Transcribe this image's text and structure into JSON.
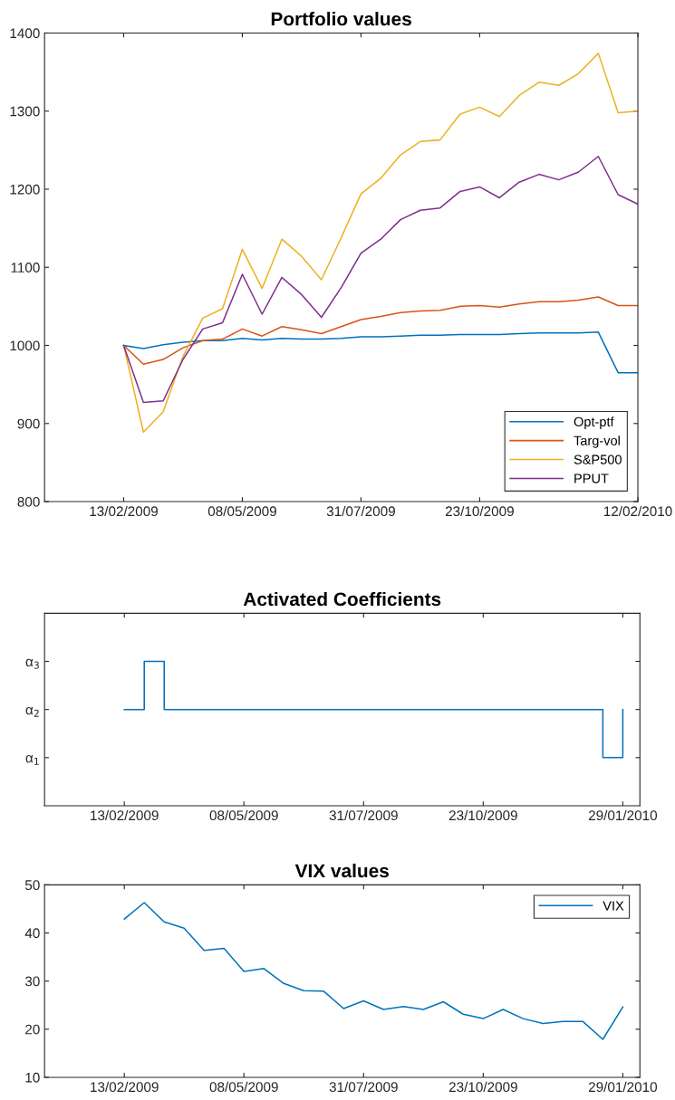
{
  "chart_data": [
    {
      "type": "line",
      "title": "Portfolio values",
      "x": [
        "2009-02-13",
        "2009-02-27",
        "2009-03-13",
        "2009-03-27",
        "2009-04-10",
        "2009-04-24",
        "2009-05-08",
        "2009-05-22",
        "2009-06-05",
        "2009-06-19",
        "2009-07-03",
        "2009-07-17",
        "2009-07-31",
        "2009-08-14",
        "2009-08-28",
        "2009-09-11",
        "2009-09-25",
        "2009-10-09",
        "2009-10-23",
        "2009-11-06",
        "2009-11-20",
        "2009-12-04",
        "2009-12-18",
        "2010-01-01",
        "2010-01-15",
        "2010-01-29",
        "2010-02-12"
      ],
      "series": [
        {
          "name": "Opt-ptf",
          "color": "#0072bd",
          "values": [
            1000,
            996,
            1001,
            1004,
            1006,
            1006,
            1009,
            1007,
            1009,
            1008,
            1008,
            1009,
            1011,
            1011,
            1012,
            1013,
            1013,
            1014,
            1014,
            1014,
            1015,
            1016,
            1016,
            1016,
            1017,
            965,
            965
          ]
        },
        {
          "name": "Targ-vol",
          "color": "#d95319",
          "values": [
            1000,
            976,
            982,
            997,
            1006,
            1008,
            1021,
            1012,
            1024,
            1020,
            1015,
            1024,
            1033,
            1037,
            1042,
            1044,
            1045,
            1050,
            1051,
            1049,
            1053,
            1056,
            1056,
            1058,
            1062,
            1051,
            1051
          ]
        },
        {
          "name": "S&P500",
          "color": "#edb120",
          "values": [
            1000,
            889,
            915,
            986,
            1035,
            1047,
            1123,
            1073,
            1136,
            1114,
            1084,
            1138,
            1194,
            1214,
            1244,
            1261,
            1263,
            1296,
            1305,
            1293,
            1320,
            1337,
            1333,
            1348,
            1374,
            1298,
            1300
          ]
        },
        {
          "name": "PPUT",
          "color": "#7e2f8e",
          "values": [
            1000,
            927,
            929,
            982,
            1021,
            1029,
            1091,
            1040,
            1087,
            1065,
            1036,
            1074,
            1118,
            1136,
            1161,
            1173,
            1176,
            1197,
            1203,
            1189,
            1209,
            1219,
            1212,
            1222,
            1242,
            1193,
            1181
          ]
        }
      ],
      "xlim": [
        "2008-12-19",
        "2010-02-12"
      ],
      "xticks": [
        {
          "value": "2009-02-13",
          "label": "13/02/2009"
        },
        {
          "value": "2009-05-08",
          "label": "08/05/2009"
        },
        {
          "value": "2009-07-31",
          "label": "31/07/2009"
        },
        {
          "value": "2009-10-23",
          "label": "23/10/2009"
        },
        {
          "value": "2010-02-12",
          "label": "12/02/2010"
        }
      ],
      "ylim": [
        800,
        1400
      ],
      "yticks": [
        800,
        900,
        1000,
        1100,
        1200,
        1300,
        1400
      ],
      "legend": "bottom right",
      "grid": false
    },
    {
      "type": "step",
      "title": "Activated Coefficients",
      "x": [
        "2009-02-13",
        "2009-02-27",
        "2009-03-13",
        "2009-03-27",
        "2009-04-10",
        "2009-04-24",
        "2009-05-08",
        "2009-05-22",
        "2009-06-05",
        "2009-06-19",
        "2009-07-03",
        "2009-07-17",
        "2009-07-31",
        "2009-08-14",
        "2009-08-28",
        "2009-09-11",
        "2009-09-25",
        "2009-10-09",
        "2009-10-23",
        "2009-11-06",
        "2009-11-20",
        "2009-12-04",
        "2009-12-18",
        "2010-01-01",
        "2010-01-15",
        "2010-01-29"
      ],
      "series": [
        {
          "color": "#0072bd",
          "values": [
            2,
            3,
            2,
            2,
            2,
            2,
            2,
            2,
            2,
            2,
            2,
            2,
            2,
            2,
            2,
            2,
            2,
            2,
            2,
            2,
            2,
            2,
            2,
            2,
            1,
            2
          ]
        }
      ],
      "xlim": [
        "2008-12-19",
        "2010-02-10"
      ],
      "xticks": [
        {
          "value": "2009-02-13",
          "label": "13/02/2009"
        },
        {
          "value": "2009-05-08",
          "label": "08/05/2009"
        },
        {
          "value": "2009-07-31",
          "label": "31/07/2009"
        },
        {
          "value": "2009-10-23",
          "label": "23/10/2009"
        },
        {
          "value": "2010-01-29",
          "label": "29/01/2010"
        }
      ],
      "ylim": [
        0,
        4
      ],
      "yticks": [
        {
          "value": 1,
          "label": "α$_{1}$"
        },
        {
          "value": 2,
          "label": "α$_{2}$"
        },
        {
          "value": 3,
          "label": "α$_{3}$"
        }
      ],
      "grid": false
    },
    {
      "type": "line",
      "title": "VIX values",
      "x": [
        "2009-02-13",
        "2009-02-27",
        "2009-03-13",
        "2009-03-27",
        "2009-04-10",
        "2009-04-24",
        "2009-05-08",
        "2009-05-22",
        "2009-06-05",
        "2009-06-19",
        "2009-07-03",
        "2009-07-17",
        "2009-07-31",
        "2009-08-14",
        "2009-08-28",
        "2009-09-11",
        "2009-09-25",
        "2009-10-09",
        "2009-10-23",
        "2009-11-06",
        "2009-11-20",
        "2009-12-04",
        "2009-12-18",
        "2010-01-01",
        "2010-01-15",
        "2010-01-29"
      ],
      "series": [
        {
          "name": "VIX",
          "color": "#0072bd",
          "values": [
            42.9,
            46.3,
            42.3,
            41.0,
            36.4,
            36.8,
            32.0,
            32.6,
            29.5,
            28.0,
            27.9,
            24.3,
            25.9,
            24.1,
            24.7,
            24.1,
            25.7,
            23.1,
            22.2,
            24.1,
            22.2,
            21.2,
            21.6,
            21.6,
            17.9,
            24.6
          ]
        }
      ],
      "xlim": [
        "2008-12-19",
        "2010-02-10"
      ],
      "xticks": [
        {
          "value": "2009-02-13",
          "label": "13/02/2009"
        },
        {
          "value": "2009-05-08",
          "label": "08/05/2009"
        },
        {
          "value": "2009-07-31",
          "label": "31/07/2009"
        },
        {
          "value": "2009-10-23",
          "label": "23/10/2009"
        },
        {
          "value": "2010-01-29",
          "label": "29/01/2010"
        }
      ],
      "ylim": [
        10,
        50
      ],
      "yticks": [
        10,
        20,
        30,
        40,
        50
      ],
      "legend": "top right",
      "grid": false
    }
  ]
}
